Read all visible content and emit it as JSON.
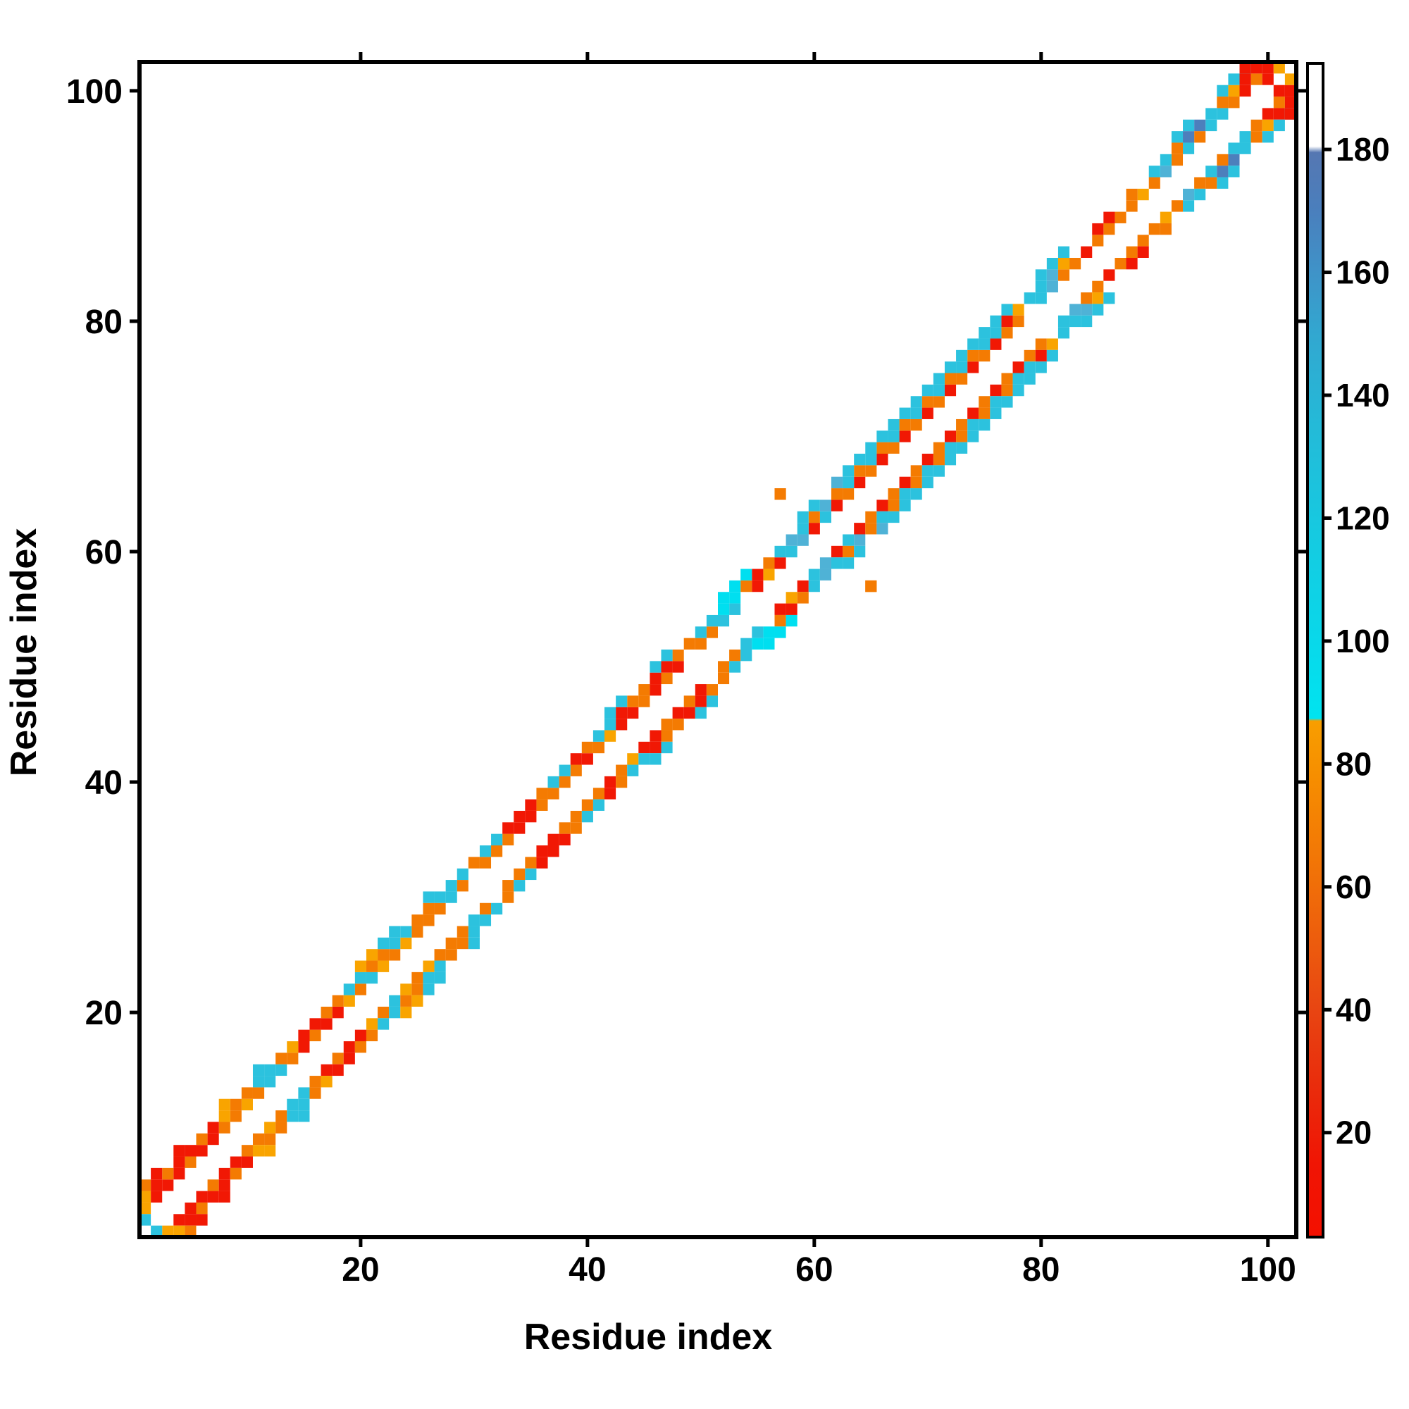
{
  "figure": {
    "background": "#ffffff",
    "frame_color": "#000000"
  },
  "chart_data": {
    "type": "heatmap",
    "title": "",
    "xlabel": "Residue index",
    "ylabel": "Residue index",
    "x_range": [
      0.5,
      102.5
    ],
    "y_range": [
      0.5,
      102.5
    ],
    "x_ticks": [
      20,
      40,
      60,
      80,
      100
    ],
    "y_ticks": [
      20,
      40,
      60,
      80,
      100
    ],
    "n_residues": 102,
    "grid": false,
    "symmetric": true,
    "matrix_encoding": "Sparse symmetric band matrix. diag_offset_2[i] is the color code of cell (i, i+2), diag_offset_3[i] of (i, i+3), diag_offset_4[i] of (i, i+4), 1-based strings; '.' means empty (white). extra_cells are [col,row,code]; all cells are mirrored across the diagonal.",
    "palette": {
      "R": "#f11804",
      "O": "#f47b02",
      "A": "#f9a400",
      "K": "#00dff0",
      "C": "#2cc2de",
      "T": "#4fb2d6",
      "B": "#4d7fbc"
    },
    "diag_offset_2": "ARRRORROOAOCCORORRAOCAOAOOOCO.OOORROOOOROARROROR.OOCC.RARCTRCROROROROROROROROO.CTOOROOOOAOTOCOCCOROR",
    "diag_offset_3": "ARORRORAOOCCOARROOCCOOCCOOCCCOCCRRROCCROCCROORROOCCKKOROCTCOTOCOCOCOCOCOCOCCRACCTA..RR.O.CCOBBCOARR",
    "diag_offset_4": "OR.R...A..C........AACC..C...............CC..CC....KKK....CC.TCCCCCCCCCCCCCCC...CC.........CC..CCC..",
    "extra_cells": [
      [
        1,
        2,
        "C"
      ],
      [
        57,
        65,
        "O"
      ],
      [
        65,
        57,
        "O"
      ],
      [
        80,
        84,
        "C"
      ],
      [
        101,
        102,
        "A"
      ],
      [
        100,
        101,
        "R"
      ],
      [
        98,
        102,
        "R"
      ]
    ],
    "colorbar": {
      "range": [
        3,
        194
      ],
      "ticks": [
        20,
        40,
        60,
        80,
        100,
        120,
        140,
        160,
        180
      ],
      "stops": [
        [
          3,
          "#f41000"
        ],
        [
          15,
          "#f01504"
        ],
        [
          28,
          "#e92d0c"
        ],
        [
          40,
          "#e84512"
        ],
        [
          50,
          "#ec5a0e"
        ],
        [
          65,
          "#f27706"
        ],
        [
          78,
          "#f68e00"
        ],
        [
          87,
          "#f89e00"
        ],
        [
          87.4,
          "#00e4f0"
        ],
        [
          100,
          "#09d8ea"
        ],
        [
          115,
          "#14cce2"
        ],
        [
          135,
          "#24bad8"
        ],
        [
          150,
          "#32a7d0"
        ],
        [
          160,
          "#3f93c8"
        ],
        [
          170,
          "#4a7fbd"
        ],
        [
          179.5,
          "#5577b2"
        ],
        [
          180.5,
          "#ffffff"
        ],
        [
          194,
          "#ffffff"
        ]
      ]
    }
  }
}
